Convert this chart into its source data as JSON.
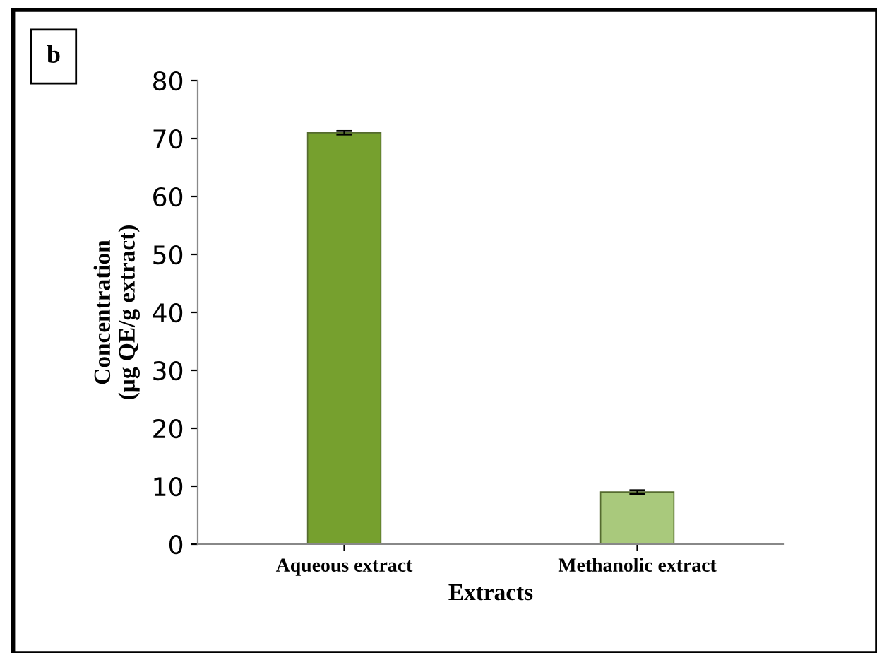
{
  "chart_data": {
    "type": "bar",
    "xlabel": "Extracts",
    "ylabel": "Concentration\n(µg QE/g extract)",
    "categories": [
      "Aqueous extract",
      "Methanolic extract"
    ],
    "values": [
      71,
      9
    ],
    "errors": [
      0.3,
      0.3
    ],
    "colors": [
      "#76a02e",
      "#a9c97c"
    ],
    "ylim": [
      0,
      80
    ],
    "yticks": [
      0,
      10,
      20,
      30,
      40,
      50,
      60,
      70,
      80
    ],
    "grid": false,
    "legend": false,
    "annotations": [
      "b"
    ]
  }
}
